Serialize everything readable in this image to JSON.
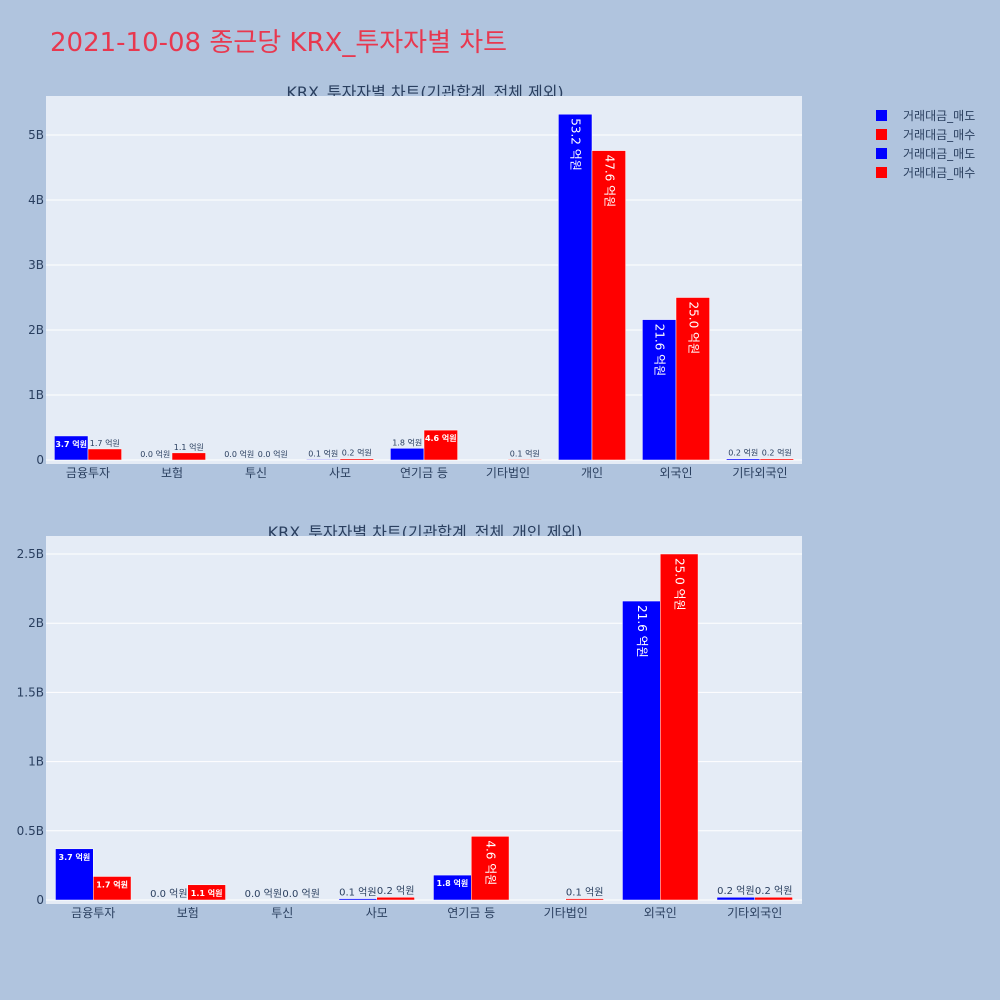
{
  "title": "2021-10-08 종근당 KRX_투자자별 차트",
  "legend": [
    {
      "label": "거래대금_매도",
      "color": "#0000ff"
    },
    {
      "label": "거래대금_매수",
      "color": "#ff0000"
    },
    {
      "label": "거래대금_매도",
      "color": "#0000ff"
    },
    {
      "label": "거래대금_매수",
      "color": "#ff0000"
    }
  ],
  "colors": {
    "sell": "#0000ff",
    "buy": "#ff0000",
    "plot_bg": "#e5ecf6",
    "page_bg": "#b0c4de",
    "title": "#e8384f"
  },
  "chart_data": [
    {
      "type": "bar",
      "title": "KRX_투자자별 차트(기관합계_전체 제외)",
      "categories": [
        "금융투자",
        "보험",
        "투신",
        "사모",
        "연기금 등",
        "기타법인",
        "개인",
        "외국인",
        "기타외국인"
      ],
      "series": [
        {
          "name": "거래대금_매도",
          "values": [
            370000000,
            0,
            0,
            10000000,
            180000000,
            0,
            5320000000,
            2160000000,
            20000000
          ],
          "labels": [
            "3.7 억원",
            "0.0 억원",
            "0.0 억원",
            "0.1 억원",
            "1.8 억원",
            "",
            "53.2 억원",
            "21.6 억원",
            "0.2 억원"
          ]
        },
        {
          "name": "거래대금_매수",
          "values": [
            170000000,
            110000000,
            0,
            20000000,
            460000000,
            10000000,
            4760000000,
            2500000000,
            20000000
          ],
          "labels": [
            "1.7 억원",
            "1.1 억원",
            "0.0 억원",
            "0.2 억원",
            "4.6 억원",
            "0.1 억원",
            "47.6 억원",
            "25.0 억원",
            "0.2 억원"
          ]
        }
      ],
      "yticks": [
        0,
        1000000000,
        2000000000,
        3000000000,
        4000000000,
        5000000000
      ],
      "ytick_labels": [
        "0",
        "1B",
        "2B",
        "3B",
        "4B",
        "5B"
      ],
      "ylim": [
        0,
        5600000000
      ],
      "grid": true
    },
    {
      "type": "bar",
      "title": "KRX_투자자별 차트(기관합계_전체_개인 제외)",
      "categories": [
        "금융투자",
        "보험",
        "투신",
        "사모",
        "연기금 등",
        "기타법인",
        "외국인",
        "기타외국인"
      ],
      "series": [
        {
          "name": "거래대금_매도",
          "values": [
            370000000,
            0,
            0,
            10000000,
            180000000,
            0,
            2160000000,
            20000000
          ],
          "labels": [
            "3.7 억원",
            "0.0 억원",
            "0.0 억원",
            "0.1 억원",
            "1.8 억원",
            "",
            "21.6 억원",
            "0.2 억원"
          ]
        },
        {
          "name": "거래대금_매수",
          "values": [
            170000000,
            110000000,
            0,
            20000000,
            460000000,
            10000000,
            2500000000,
            20000000
          ],
          "labels": [
            "1.7 억원",
            "1.1 억원",
            "0.0 억원",
            "0.2 억원",
            "4.6 억원",
            "0.1 억원",
            "25.0 억원",
            "0.2 억원"
          ]
        }
      ],
      "yticks": [
        0,
        500000000,
        1000000000,
        1500000000,
        2000000000,
        2500000000
      ],
      "ytick_labels": [
        "0",
        "0.5B",
        "1B",
        "1.5B",
        "2B",
        "2.5B"
      ],
      "ylim": [
        0,
        2630000000
      ],
      "grid": true
    }
  ]
}
